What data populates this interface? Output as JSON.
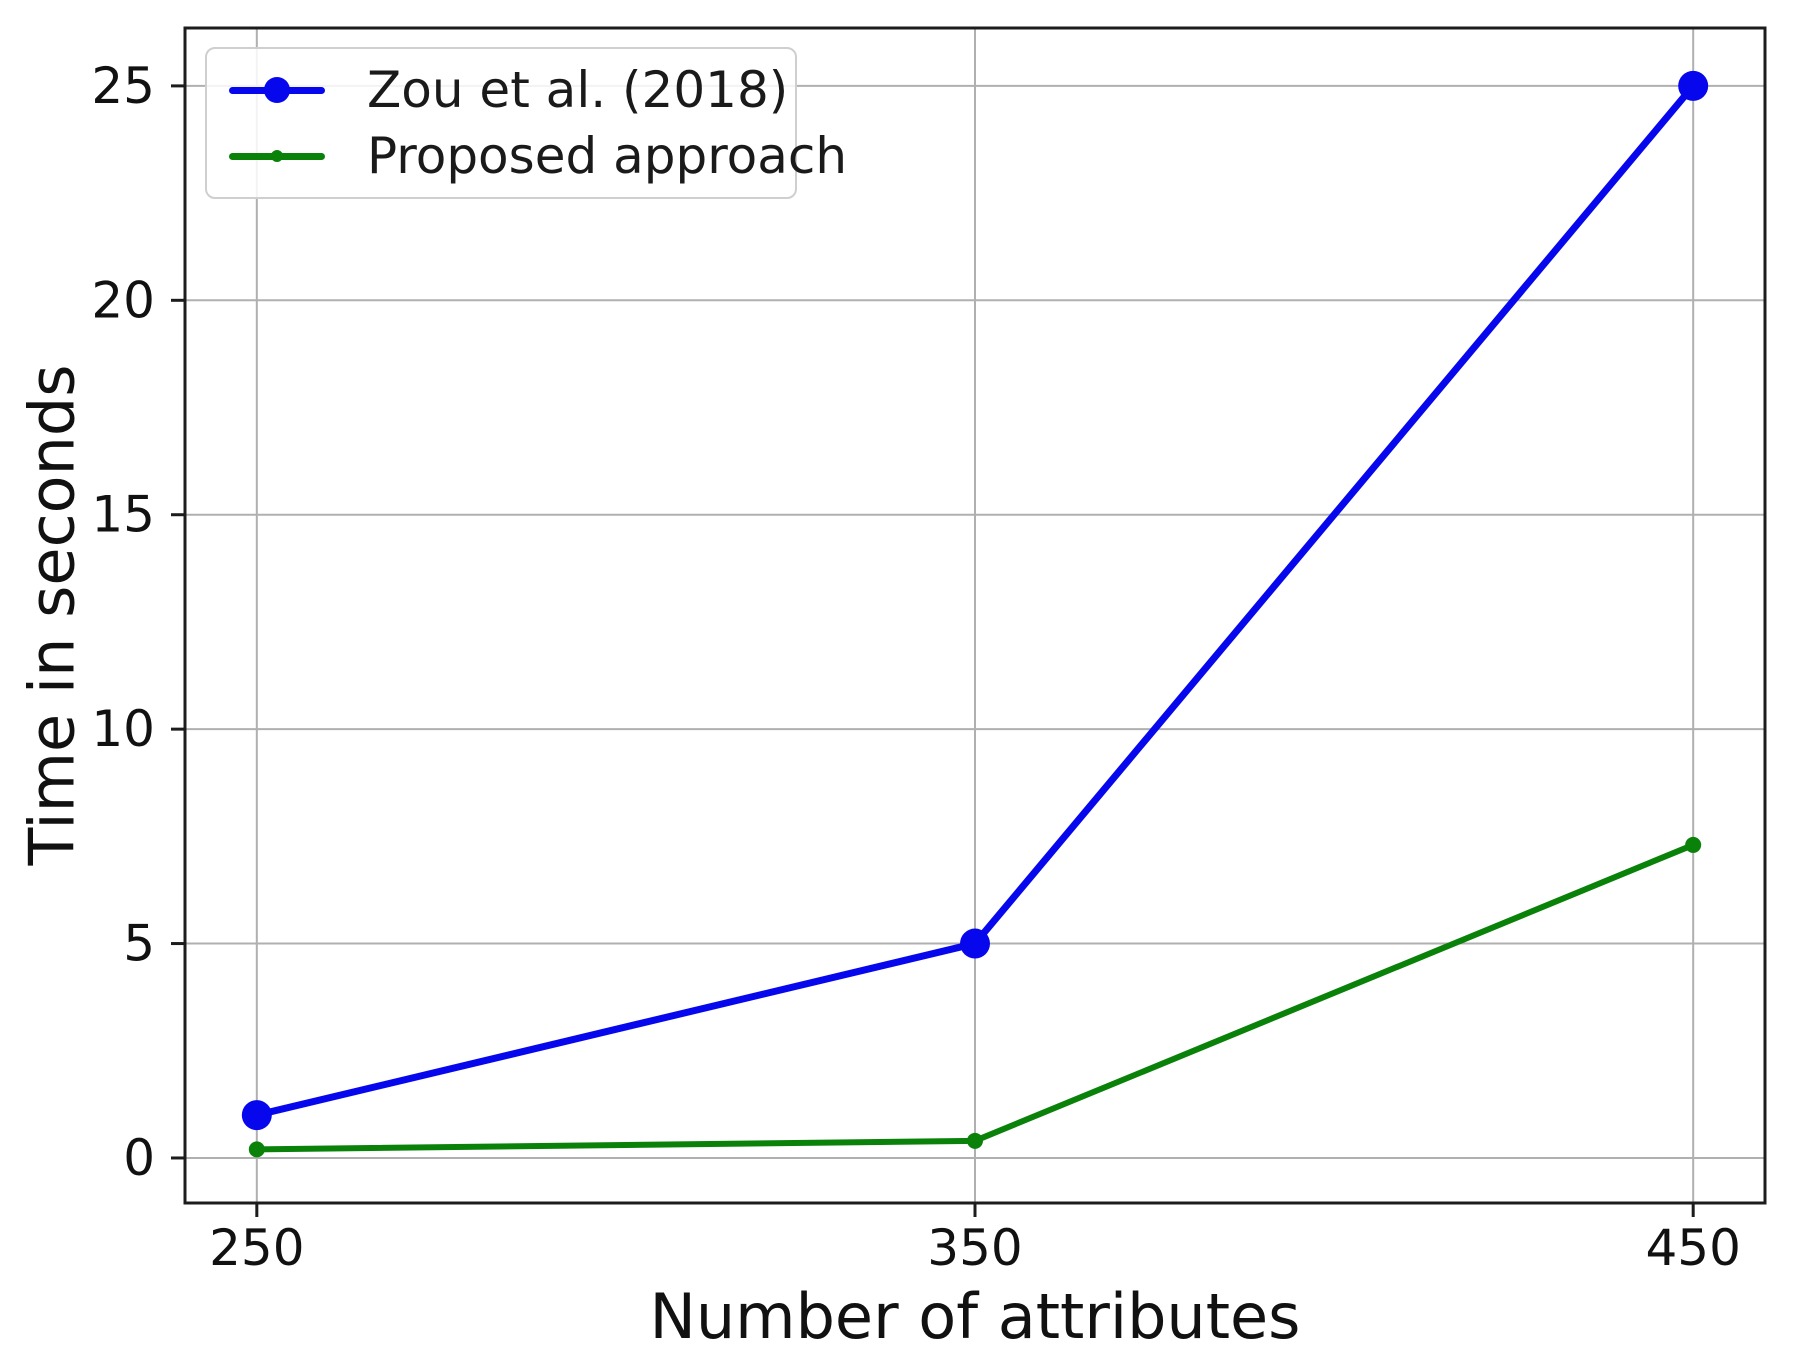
{
  "chart_data": {
    "type": "line",
    "xlabel": "Number of attributes",
    "ylabel": "Time in seconds",
    "x": [
      250,
      350,
      450
    ],
    "x_tick_labels": [
      "250",
      "350",
      "450"
    ],
    "y_ticks": [
      0,
      5,
      10,
      15,
      20,
      25
    ],
    "y_tick_labels": [
      "0",
      "5",
      "10",
      "15",
      "20",
      "25"
    ],
    "xlim": [
      240,
      460
    ],
    "ylim": [
      -1.05,
      26.35
    ],
    "grid": true,
    "legend_position": "upper left",
    "series": [
      {
        "name": "Zou et al. (2018)",
        "color": "#0707ee",
        "values": [
          1.0,
          5.0,
          25.0
        ],
        "marker": "circle",
        "marker_radius": 15,
        "line_width": 7
      },
      {
        "name": "Proposed approach",
        "color": "#0a820a",
        "values": [
          0.2,
          0.4,
          7.3
        ],
        "marker": "circle",
        "marker_radius": 8,
        "line_width": 6
      }
    ],
    "colors": {
      "grid": "#b0b0b0",
      "spine": "#1c1c1c",
      "text": "#111111"
    }
  }
}
